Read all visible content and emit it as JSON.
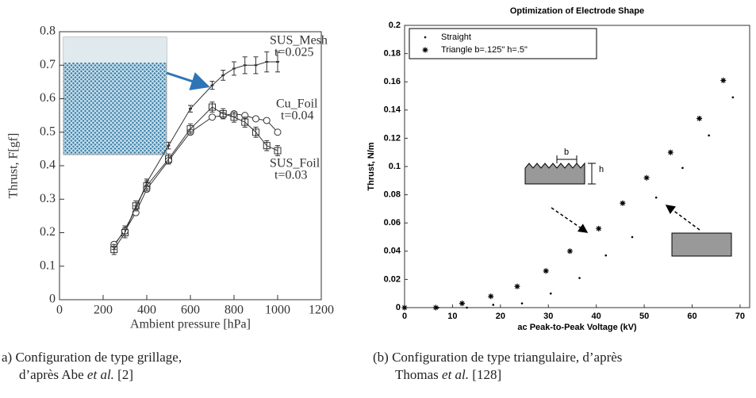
{
  "chart_data": [
    {
      "type": "line",
      "xlabel": "Ambient pressure [hPa]",
      "ylabel": "Thrust, F[gf]",
      "xlim": [
        0,
        1200
      ],
      "xticks": [
        0,
        200,
        400,
        600,
        800,
        1000,
        1200
      ],
      "ylim": [
        0,
        0.8
      ],
      "yticks": [
        0,
        0.1,
        0.2,
        0.3,
        0.4,
        0.5,
        0.6,
        0.7,
        0.8
      ],
      "grid": false,
      "series": [
        {
          "name": "SUS_Mesh",
          "note": "t=0.025",
          "marker": "errorbar",
          "color": "#333333",
          "x": [
            250,
            300,
            350,
            400,
            500,
            600,
            700,
            750,
            800,
            850,
            900,
            950,
            1000
          ],
          "values": [
            0.16,
            0.21,
            0.27,
            0.35,
            0.46,
            0.57,
            0.64,
            0.67,
            0.69,
            0.7,
            0.7,
            0.71,
            0.71
          ],
          "errors": [
            0.01,
            0.01,
            0.01,
            0.01,
            0.01,
            0.01,
            0.012,
            0.015,
            0.02,
            0.025,
            0.025,
            0.03,
            0.03
          ]
        },
        {
          "name": "Cu_Foil",
          "note": "t=0.04",
          "marker": "circle",
          "color": "#333333",
          "x": [
            250,
            300,
            350,
            400,
            500,
            600,
            700,
            750,
            800,
            850,
            900,
            950,
            1000
          ],
          "values": [
            0.165,
            0.205,
            0.26,
            0.33,
            0.415,
            0.5,
            0.545,
            0.55,
            0.555,
            0.55,
            0.54,
            0.535,
            0.5
          ]
        },
        {
          "name": "SUS_Foil",
          "note": "t=0.03",
          "marker": "square",
          "color": "#333333",
          "x": [
            250,
            300,
            350,
            400,
            500,
            600,
            700,
            750,
            800,
            850,
            900,
            950,
            1000
          ],
          "values": [
            0.15,
            0.2,
            0.28,
            0.34,
            0.42,
            0.51,
            0.575,
            0.555,
            0.545,
            0.53,
            0.5,
            0.46,
            0.445
          ],
          "errors": [
            0.015,
            0.015,
            0.015,
            0.015,
            0.015,
            0.015,
            0.015,
            0.015,
            0.015,
            0.015,
            0.015,
            0.015,
            0.015
          ]
        }
      ],
      "caption": {
        "label": "a)",
        "lines": [
          [
            "Configuration de type grillage,"
          ],
          [
            "d’après Abe ",
            "et al.",
            " [2]"
          ]
        ]
      }
    },
    {
      "type": "scatter",
      "title": "Optimization of Electrode Shape",
      "xlabel": "ac Peak-to-Peak Voltage (kV)",
      "ylabel": "Thrust, N/m",
      "xlim": [
        0,
        72
      ],
      "xticks": [
        0,
        10,
        20,
        30,
        40,
        50,
        60,
        70
      ],
      "ylim": [
        0,
        0.2
      ],
      "yticks": [
        0,
        0.02,
        0.04,
        0.06,
        0.08,
        0.1,
        0.12,
        0.14,
        0.16,
        0.18,
        0.2
      ],
      "grid": false,
      "legend": "upper-left",
      "inset_labels": [
        "b",
        "h"
      ],
      "series": [
        {
          "name": "Straight",
          "marker": "dot",
          "color": "#000000",
          "x": [
            0,
            7,
            13,
            18.5,
            24.5,
            30.5,
            36.5,
            42,
            47.5,
            52.5,
            58,
            63.5,
            68.5
          ],
          "values": [
            0,
            0,
            0,
            0.002,
            0.003,
            0.01,
            0.021,
            0.037,
            0.05,
            0.078,
            0.099,
            0.122,
            0.149
          ]
        },
        {
          "name": "Triangle b=.125\" h=.5\"",
          "marker": "asterisk",
          "color": "#000000",
          "x": [
            0,
            6.5,
            12,
            18,
            23.5,
            29.5,
            34.5,
            40.5,
            45.5,
            50.5,
            55.5,
            61.5,
            66.5
          ],
          "values": [
            0,
            0,
            0.003,
            0.008,
            0.015,
            0.026,
            0.04,
            0.056,
            0.074,
            0.092,
            0.11,
            0.134,
            0.161
          ]
        }
      ],
      "caption": {
        "label": "(b)",
        "lines": [
          [
            "Configuration de type triangulaire, d’après"
          ],
          [
            "Thomas ",
            "et al.",
            " [128]"
          ]
        ]
      }
    }
  ]
}
